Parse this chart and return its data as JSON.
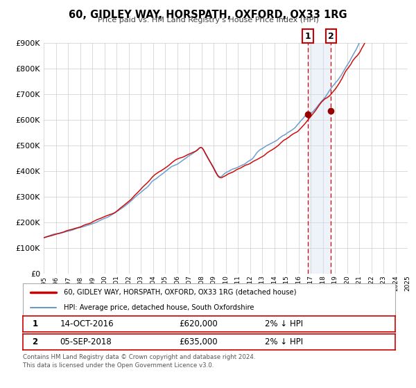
{
  "title": "60, GIDLEY WAY, HORSPATH, OXFORD, OX33 1RG",
  "subtitle": "Price paid vs. HM Land Registry's House Price Index (HPI)",
  "legend_line1": "60, GIDLEY WAY, HORSPATH, OXFORD, OX33 1RG (detached house)",
  "legend_line2": "HPI: Average price, detached house, South Oxfordshire",
  "sale1_date": "14-OCT-2016",
  "sale1_price": "£620,000",
  "sale1_hpi": "2% ↓ HPI",
  "sale2_date": "05-SEP-2018",
  "sale2_price": "£635,000",
  "sale2_hpi": "2% ↓ HPI",
  "footer_line1": "Contains HM Land Registry data © Crown copyright and database right 2024.",
  "footer_line2": "This data is licensed under the Open Government Licence v3.0.",
  "sale1_year": 2016.79,
  "sale2_year": 2018.68,
  "sale1_value": 620000,
  "sale2_value": 635000,
  "hpi_color": "#6699cc",
  "price_color": "#cc0000",
  "marker_color": "#990000",
  "vline_color": "#cc0000",
  "shade_color": "#ccddf0",
  "background_color": "#ffffff",
  "grid_color": "#cccccc",
  "ylim_min": 0,
  "ylim_max": 900000,
  "xmin": 1995,
  "xmax": 2025
}
